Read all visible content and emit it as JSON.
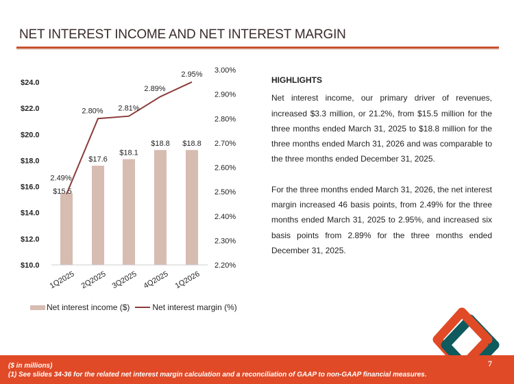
{
  "title": "NET INTEREST INCOME AND NET INTEREST MARGIN",
  "highlights": {
    "heading": "HIGHLIGHTS",
    "p1": "Net interest income, our primary driver of revenues, increased $3.3 million, or 21.2%, from $15.5 million for the three months ended March 31, 2025 to $18.8 million for the three months ended March 31, 2026 and was comparable to the three months ended December 31, 2025.",
    "p2": "For the three months ended March 31, 2026, the net interest margin increased 46 basis points, from 2.49% for the three months ended March 31, 2025 to 2.95%, and increased six basis points from 2.89% for the three months ended December 31, 2025."
  },
  "footer": {
    "note1": "($ in millions)",
    "note2": "(1) See slides 34-36 for the related net interest margin calculation and a reconciliation of GAAP to non-GAAP financial measures.",
    "page": "7"
  },
  "colors": {
    "bar": "#d7bcb2",
    "line": "#8b3a3a",
    "accent": "#e04a27",
    "teal": "#0f5a5c"
  },
  "chart_data": {
    "type": "bar+line",
    "categories": [
      "1Q2025",
      "2Q2025",
      "3Q2025",
      "4Q2025",
      "1Q2026"
    ],
    "series": [
      {
        "name": "Net interest income ($)",
        "type": "bar",
        "axis": "left",
        "values": [
          15.5,
          17.6,
          18.1,
          18.8,
          18.8
        ],
        "labels": [
          "$15.5",
          "$17.6",
          "$18.1",
          "$18.8",
          "$18.8"
        ]
      },
      {
        "name": "Net interest margin (%)",
        "type": "line",
        "axis": "right",
        "values": [
          2.49,
          2.8,
          2.81,
          2.89,
          2.95
        ],
        "labels": [
          "2.49%",
          "2.80%",
          "2.81%",
          "2.89%",
          "2.95%"
        ]
      }
    ],
    "left_ticks": [
      "$10.0",
      "$12.0",
      "$14.0",
      "$16.0",
      "$18.0",
      "$20.0",
      "$22.0",
      "$24.0"
    ],
    "right_ticks": [
      "2.20%",
      "2.30%",
      "2.40%",
      "2.50%",
      "2.60%",
      "2.70%",
      "2.80%",
      "2.90%",
      "3.00%"
    ],
    "ylim_left": [
      10,
      24
    ],
    "ylim_right": [
      2.2,
      3.0
    ],
    "legend": "bottom"
  }
}
